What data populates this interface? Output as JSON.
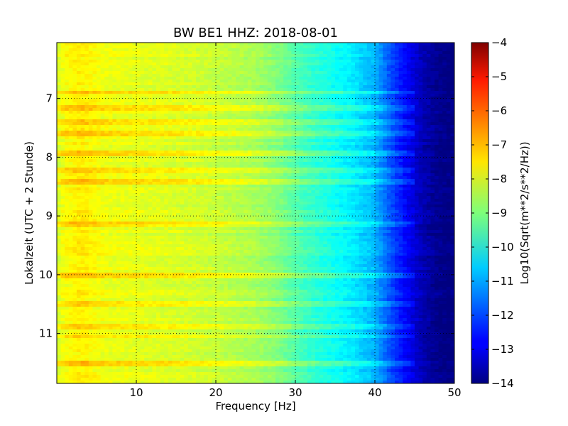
{
  "chart_data": {
    "type": "heatmap",
    "title": "BW BE1 HHZ: 2018-08-01",
    "xlabel": "Frequency [Hz]",
    "ylabel": "Lokalzeit (UTC + 2 Stunde)",
    "colorbar_label": "Log10(Sqrt(m**2/s**2/Hz))",
    "xlim": [
      0,
      50
    ],
    "ylim": [
      6.05,
      11.85
    ],
    "y_inverted": true,
    "x_ticks": [
      10,
      20,
      30,
      40,
      50
    ],
    "x_tick_labels": [
      "10",
      "20",
      "30",
      "40",
      "50"
    ],
    "y_ticks": [
      7,
      8,
      9,
      10,
      11
    ],
    "y_tick_labels": [
      "7",
      "8",
      "9",
      "10",
      "11"
    ],
    "colorbar_range": [
      -14,
      -4
    ],
    "colorbar_ticks": [
      -4,
      -5,
      -6,
      -7,
      -8,
      -9,
      -10,
      -11,
      -12,
      -13,
      -14
    ],
    "colorbar_tick_labels": [
      "−4",
      "−5",
      "−6",
      "−7",
      "−8",
      "−9",
      "−10",
      "−11",
      "−12",
      "−13",
      "−14"
    ],
    "colormap": "jet",
    "grid": "dotted",
    "frequency_profile": [
      {
        "freq": 0.0,
        "value": -8.2
      },
      {
        "freq": 1.0,
        "value": -7.8
      },
      {
        "freq": 3.0,
        "value": -7.6
      },
      {
        "freq": 6.0,
        "value": -7.9
      },
      {
        "freq": 10.0,
        "value": -8.0
      },
      {
        "freq": 15.0,
        "value": -8.1
      },
      {
        "freq": 20.0,
        "value": -8.3
      },
      {
        "freq": 25.0,
        "value": -8.6
      },
      {
        "freq": 28.0,
        "value": -9.0
      },
      {
        "freq": 31.0,
        "value": -9.6
      },
      {
        "freq": 34.0,
        "value": -10.0
      },
      {
        "freq": 37.0,
        "value": -10.4
      },
      {
        "freq": 40.0,
        "value": -11.0
      },
      {
        "freq": 42.0,
        "value": -12.0
      },
      {
        "freq": 44.0,
        "value": -12.8
      },
      {
        "freq": 46.0,
        "value": -13.5
      },
      {
        "freq": 48.0,
        "value": -13.9
      },
      {
        "freq": 50.0,
        "value": -14.0
      }
    ],
    "loud_time_bands": [
      6.9,
      7.18,
      7.4,
      7.58,
      7.95,
      8.22,
      8.4,
      9.15,
      10.0,
      10.5,
      10.87,
      11.05,
      11.5
    ]
  }
}
